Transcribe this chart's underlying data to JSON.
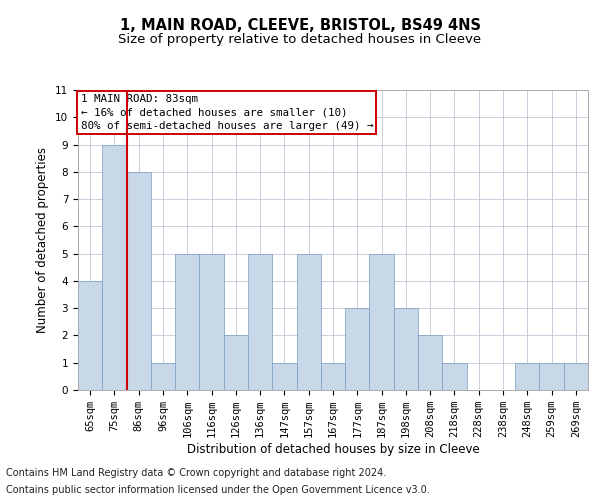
{
  "title": "1, MAIN ROAD, CLEEVE, BRISTOL, BS49 4NS",
  "subtitle": "Size of property relative to detached houses in Cleeve",
  "xlabel": "Distribution of detached houses by size in Cleeve",
  "ylabel": "Number of detached properties",
  "categories": [
    "65sqm",
    "75sqm",
    "86sqm",
    "96sqm",
    "106sqm",
    "116sqm",
    "126sqm",
    "136sqm",
    "147sqm",
    "157sqm",
    "167sqm",
    "177sqm",
    "187sqm",
    "198sqm",
    "208sqm",
    "218sqm",
    "228sqm",
    "238sqm",
    "248sqm",
    "259sqm",
    "269sqm"
  ],
  "values": [
    4,
    9,
    8,
    1,
    5,
    5,
    2,
    5,
    1,
    5,
    1,
    3,
    5,
    3,
    2,
    1,
    0,
    0,
    1,
    1,
    1
  ],
  "bar_color": "#c8d8e8",
  "bar_edge_color": "#7a9cbf",
  "ylim": [
    0,
    11
  ],
  "yticks": [
    0,
    1,
    2,
    3,
    4,
    5,
    6,
    7,
    8,
    9,
    10,
    11
  ],
  "property_label": "1 MAIN ROAD: 83sqm",
  "annotation_line1": "← 16% of detached houses are smaller (10)",
  "annotation_line2": "80% of semi-detached houses are larger (49) →",
  "vline_x_index": 1.5,
  "annotation_box_color": "#ffffff",
  "annotation_box_edge": "#cc0000",
  "vline_color": "#cc0000",
  "grid_color": "#c0c8d8",
  "footnote1": "Contains HM Land Registry data © Crown copyright and database right 2024.",
  "footnote2": "Contains public sector information licensed under the Open Government Licence v3.0.",
  "title_fontsize": 10.5,
  "subtitle_fontsize": 9.5,
  "xlabel_fontsize": 8.5,
  "ylabel_fontsize": 8.5,
  "tick_fontsize": 7.5,
  "annotation_fontsize": 7.8,
  "footnote_fontsize": 7.0
}
